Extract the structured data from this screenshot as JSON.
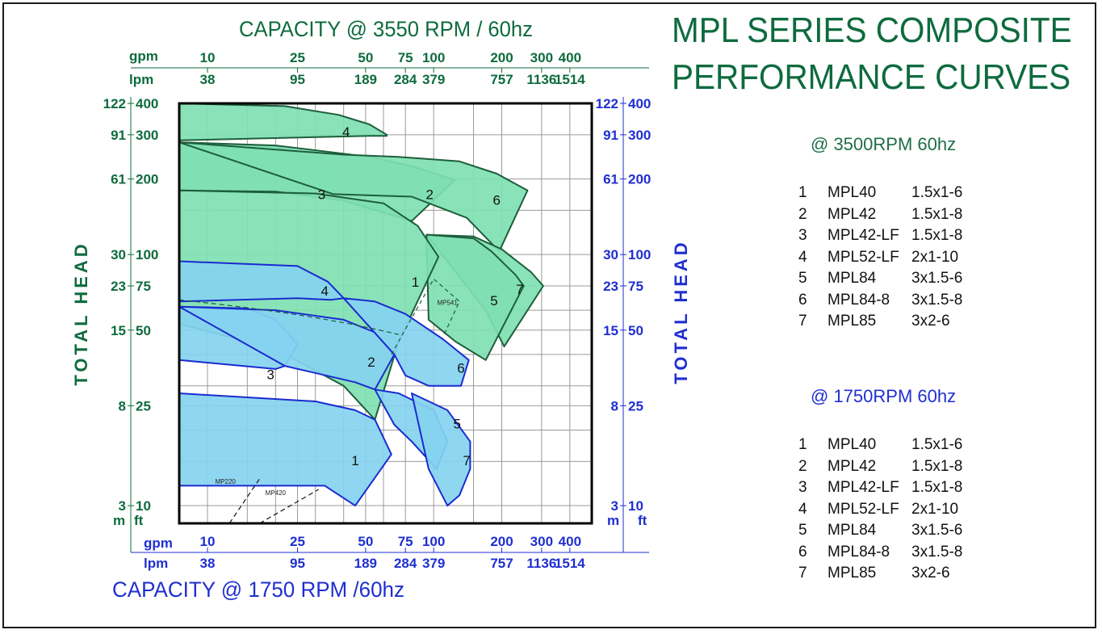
{
  "title_line1": "MPL  SERIES COMPOSITE",
  "title_line2": "PERFORMANCE CURVES",
  "colors": {
    "green_text": "#0e6b3e",
    "blue_text": "#1f2fd0",
    "green_fill": "#7fe0b2",
    "blue_fill": "#86d3f0",
    "green_stroke": "#1d5e3b",
    "blue_stroke": "#1a2bd0"
  },
  "legends": [
    {
      "heading": "@ 3500RPM 60hz",
      "color": "green",
      "rows": [
        {
          "num": "1",
          "model": "MPL40",
          "size": "1.5x1-6"
        },
        {
          "num": "2",
          "model": "MPL42",
          "size": "1.5x1-8"
        },
        {
          "num": "3",
          "model": "MPL42-LF",
          "size": "1.5x1-8"
        },
        {
          "num": "4",
          "model": "MPL52-LF",
          "size": "2x1-10"
        },
        {
          "num": "5",
          "model": "MPL84",
          "size": "3x1.5-6"
        },
        {
          "num": "6",
          "model": "MPL84-8",
          "size": "3x1.5-8"
        },
        {
          "num": "7",
          "model": "MPL85",
          "size": "3x2-6"
        }
      ]
    },
    {
      "heading": "@ 1750RPM 60hz",
      "color": "blue",
      "rows": [
        {
          "num": "1",
          "model": "MPL40",
          "size": "1.5x1-6"
        },
        {
          "num": "2",
          "model": "MPL42",
          "size": "1.5x1-8"
        },
        {
          "num": "3",
          "model": "MPL42-LF",
          "size": "1.5x1-8"
        },
        {
          "num": "4",
          "model": "MPL52-LF",
          "size": "2x1-10"
        },
        {
          "num": "5",
          "model": "MPL84",
          "size": "3x1.5-6"
        },
        {
          "num": "6",
          "model": "MPL84-8",
          "size": "3x1.5-8"
        },
        {
          "num": "7",
          "model": "MPL85",
          "size": "3x2-6"
        }
      ]
    }
  ],
  "chart_data": {
    "type": "area",
    "scale": "log-log",
    "top_axis_title": "CAPACITY @ 3550 RPM / 60hz",
    "bottom_axis_title": "CAPACITY  @ 1750 RPM /60hz",
    "left_axis_title": "TOTAL HEAD",
    "right_axis_title": "TOTAL HEAD",
    "x_unit_labels": [
      "gpm",
      "lpm"
    ],
    "y_unit_labels": [
      "m",
      "ft"
    ],
    "xlim_gpm": [
      7.5,
      500
    ],
    "ylim_ft": [
      8.5,
      400
    ],
    "x_ticks": [
      {
        "gpm": "10",
        "lpm": "38",
        "v": 10
      },
      {
        "gpm": "25",
        "lpm": "95",
        "v": 25
      },
      {
        "gpm": "50",
        "lpm": "189",
        "v": 50
      },
      {
        "gpm": "75",
        "lpm": "284",
        "v": 75
      },
      {
        "gpm": "100",
        "lpm": "379",
        "v": 100
      },
      {
        "gpm": "200",
        "lpm": "757",
        "v": 200
      },
      {
        "gpm": "300",
        "lpm": "1136",
        "v": 300
      },
      {
        "gpm": "400",
        "lpm": "1514",
        "v": 400
      }
    ],
    "y_ticks": [
      {
        "m": "122",
        "ft": "400",
        "v": 400
      },
      {
        "m": "91",
        "ft": "300",
        "v": 300
      },
      {
        "m": "61",
        "ft": "200",
        "v": 200
      },
      {
        "m": "30",
        "ft": "100",
        "v": 100
      },
      {
        "m": "23",
        "ft": "75",
        "v": 75
      },
      {
        "m": "15",
        "ft": "50",
        "v": 50
      },
      {
        "m": "8",
        "ft": "25",
        "v": 25
      },
      {
        "m": "3",
        "ft": "10",
        "v": 10
      }
    ],
    "grid": true,
    "series_3500rpm": [
      {
        "label": "4",
        "label_at": [
          41,
          305
        ],
        "points": [
          [
            7.5,
            400
          ],
          [
            22,
            390
          ],
          [
            38,
            360
          ],
          [
            52,
            330
          ],
          [
            62,
            300
          ],
          [
            62,
            297
          ],
          [
            52,
            297
          ],
          [
            7.5,
            285
          ]
        ]
      },
      {
        "label": "3",
        "label_at": [
          32,
          172
        ],
        "points": [
          [
            7.5,
            280
          ],
          [
            20,
            270
          ],
          [
            32,
            230
          ],
          [
            40,
            190
          ],
          [
            36,
            174
          ],
          [
            20,
            178
          ],
          [
            7.5,
            180
          ]
        ]
      },
      {
        "label": "2",
        "label_at": [
          96,
          172
        ],
        "points": [
          [
            7.5,
            280
          ],
          [
            20,
            272
          ],
          [
            52,
            245
          ],
          [
            80,
            225
          ],
          [
            124,
            198
          ],
          [
            80,
            136
          ],
          [
            40,
            164
          ],
          [
            20,
            178
          ],
          [
            7.5,
            180
          ]
        ]
      },
      {
        "label": "6",
        "label_at": [
          190,
          163
        ],
        "points": [
          [
            7.5,
            280
          ],
          [
            40,
            250
          ],
          [
            70,
            245
          ],
          [
            130,
            235
          ],
          [
            190,
            210
          ],
          [
            260,
            180
          ],
          [
            195,
            103
          ],
          [
            140,
            140
          ],
          [
            80,
            170
          ],
          [
            36,
            174
          ]
        ]
      },
      {
        "label": "7",
        "label_at": [
          240,
          72
        ],
        "points": [
          [
            93,
            120
          ],
          [
            150,
            118
          ],
          [
            200,
            105
          ],
          [
            270,
            85
          ],
          [
            305,
            75
          ],
          [
            205,
            43
          ],
          [
            170,
            60
          ]
        ]
      },
      {
        "label": "5",
        "label_at": [
          185,
          65
        ],
        "points": [
          [
            93,
            120
          ],
          [
            150,
            116
          ],
          [
            180,
            103
          ],
          [
            230,
            83
          ],
          [
            250,
            75
          ],
          [
            170,
            38
          ],
          [
            125,
            45
          ],
          [
            95,
            55
          ]
        ]
      },
      {
        "label": "1",
        "label_at": [
          83,
          77
        ],
        "points": [
          [
            7.5,
            180
          ],
          [
            30,
            175
          ],
          [
            60,
            160
          ],
          [
            85,
            130
          ],
          [
            105,
            98
          ],
          [
            70,
            45
          ],
          [
            55,
            22
          ],
          [
            40,
            30
          ],
          [
            20,
            42
          ],
          [
            7.5,
            53
          ]
        ]
      }
    ],
    "series_1750rpm": [
      {
        "label": "4",
        "label_at": [
          33,
          71
        ],
        "points": [
          [
            7.5,
            94
          ],
          [
            25,
            90
          ],
          [
            34,
            78
          ],
          [
            40,
            67
          ],
          [
            35,
            66
          ],
          [
            25,
            67
          ],
          [
            7.5,
            65
          ]
        ]
      },
      {
        "label": "3",
        "label_at": [
          19,
          33
        ],
        "points": [
          [
            7.5,
            62
          ],
          [
            15,
            61
          ],
          [
            20,
            55
          ],
          [
            25,
            44
          ],
          [
            22,
            36
          ],
          [
            20,
            35
          ],
          [
            7.5,
            38
          ]
        ]
      },
      {
        "label": "2",
        "label_at": [
          53,
          37
        ],
        "points": [
          [
            7.5,
            62
          ],
          [
            20,
            60
          ],
          [
            40,
            55
          ],
          [
            55,
            49
          ],
          [
            67,
            40
          ],
          [
            55,
            29
          ],
          [
            45,
            31
          ],
          [
            22,
            36
          ]
        ]
      },
      {
        "label": "6",
        "label_at": [
          132,
          35
        ],
        "points": [
          [
            40,
            67
          ],
          [
            55,
            65
          ],
          [
            75,
            58
          ],
          [
            110,
            46
          ],
          [
            143,
            38
          ],
          [
            132,
            30
          ],
          [
            95,
            30
          ],
          [
            75,
            33
          ],
          [
            67,
            40
          ]
        ]
      },
      {
        "label": "5",
        "label_at": [
          127,
          21
        ],
        "points": [
          [
            55,
            29
          ],
          [
            70,
            28
          ],
          [
            100,
            24
          ],
          [
            115,
            18
          ],
          [
            103,
            14
          ],
          [
            80,
            18
          ],
          [
            67,
            21
          ]
        ]
      },
      {
        "label": "7",
        "label_at": [
          140,
          15
        ],
        "points": [
          [
            80,
            28
          ],
          [
            115,
            24
          ],
          [
            145,
            18
          ],
          [
            145,
            14
          ],
          [
            130,
            11
          ],
          [
            115,
            10
          ],
          [
            95,
            14
          ]
        ]
      },
      {
        "label": "1",
        "label_at": [
          45,
          15
        ],
        "points": [
          [
            7.5,
            28
          ],
          [
            15,
            27
          ],
          [
            30,
            26
          ],
          [
            45,
            24
          ],
          [
            55,
            22
          ],
          [
            65,
            16
          ],
          [
            45,
            10
          ],
          [
            33,
            12
          ],
          [
            22,
            12
          ],
          [
            7.5,
            12
          ]
        ]
      }
    ],
    "annotations": [
      {
        "text": "MP541",
        "kind": "dashed-curve",
        "label_at": [
          115,
          63
        ]
      },
      {
        "text": "MP220",
        "kind": "dashed-line",
        "label_at": [
          12,
          12.2
        ]
      },
      {
        "text": "MP420",
        "kind": "dashed-line",
        "label_at": [
          20,
          11
        ]
      }
    ]
  }
}
